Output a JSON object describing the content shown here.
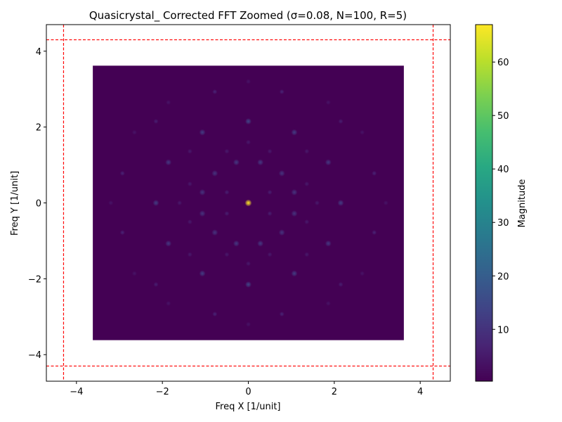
{
  "chart_data": {
    "type": "heatmap",
    "title": "Quasicrystal_ Corrected FFT Zoomed (σ=0.08, N=100, R=5)",
    "xlabel": "Freq X [1/unit]",
    "ylabel": "Freq Y [1/unit]",
    "xlim": [
      -4.7,
      4.7
    ],
    "ylim": [
      -4.7,
      4.7
    ],
    "xticks": [
      -4,
      -2,
      0,
      2,
      4
    ],
    "yticks": [
      -4,
      -2,
      0,
      2,
      4
    ],
    "xtick_labels": [
      "−4",
      "−2",
      "0",
      "2",
      "4"
    ],
    "ytick_labels": [
      "−4",
      "−2",
      "0",
      "2",
      "4"
    ],
    "image_extent": {
      "x": [
        -3.62,
        3.62
      ],
      "y": [
        -3.62,
        3.62
      ]
    },
    "background_value": 0.3,
    "peaks": [
      {
        "x": 0,
        "y": 0,
        "magnitude": 67
      },
      {
        "x": 0,
        "y": 2.15,
        "magnitude": 14
      },
      {
        "x": 0,
        "y": -2.15,
        "magnitude": 14
      },
      {
        "x": 1.07,
        "y": 1.86,
        "magnitude": 12
      },
      {
        "x": -1.07,
        "y": 1.86,
        "magnitude": 12
      },
      {
        "x": 1.07,
        "y": -1.86,
        "magnitude": 12
      },
      {
        "x": -1.07,
        "y": -1.86,
        "magnitude": 12
      },
      {
        "x": 2.15,
        "y": 0,
        "magnitude": 12
      },
      {
        "x": -2.15,
        "y": 0,
        "magnitude": 12
      },
      {
        "x": 1.86,
        "y": 1.07,
        "magnitude": 11
      },
      {
        "x": -1.86,
        "y": 1.07,
        "magnitude": 11
      },
      {
        "x": 1.86,
        "y": -1.07,
        "magnitude": 11
      },
      {
        "x": -1.86,
        "y": -1.07,
        "magnitude": 11
      },
      {
        "x": 0.28,
        "y": 1.07,
        "magnitude": 11
      },
      {
        "x": -0.28,
        "y": 1.07,
        "magnitude": 11
      },
      {
        "x": 0.28,
        "y": -1.07,
        "magnitude": 11
      },
      {
        "x": -0.28,
        "y": -1.07,
        "magnitude": 11
      },
      {
        "x": 1.07,
        "y": 0.28,
        "magnitude": 10
      },
      {
        "x": 1.07,
        "y": -0.28,
        "magnitude": 10
      },
      {
        "x": -1.07,
        "y": 0.28,
        "magnitude": 10
      },
      {
        "x": -1.07,
        "y": -0.28,
        "magnitude": 10
      },
      {
        "x": 0.78,
        "y": 0.78,
        "magnitude": 10
      },
      {
        "x": -0.78,
        "y": 0.78,
        "magnitude": 10
      },
      {
        "x": 0.78,
        "y": -0.78,
        "magnitude": 10
      },
      {
        "x": -0.78,
        "y": -0.78,
        "magnitude": 10
      },
      {
        "x": 0.78,
        "y": 2.93,
        "magnitude": 7
      },
      {
        "x": -0.78,
        "y": 2.93,
        "magnitude": 7
      },
      {
        "x": 0.78,
        "y": -2.93,
        "magnitude": 7
      },
      {
        "x": -0.78,
        "y": -2.93,
        "magnitude": 7
      },
      {
        "x": 2.93,
        "y": 0.78,
        "magnitude": 7
      },
      {
        "x": -2.93,
        "y": 0.78,
        "magnitude": 7
      },
      {
        "x": 2.93,
        "y": -0.78,
        "magnitude": 7
      },
      {
        "x": -2.93,
        "y": -0.78,
        "magnitude": 7
      },
      {
        "x": 2.15,
        "y": 2.15,
        "magnitude": 6
      },
      {
        "x": -2.15,
        "y": 2.15,
        "magnitude": 6
      },
      {
        "x": 2.15,
        "y": -2.15,
        "magnitude": 6
      },
      {
        "x": -2.15,
        "y": -2.15,
        "magnitude": 6
      },
      {
        "x": 0.5,
        "y": 0.28,
        "magnitude": 6
      },
      {
        "x": -0.5,
        "y": 0.28,
        "magnitude": 6
      },
      {
        "x": 0.5,
        "y": -0.28,
        "magnitude": 6
      },
      {
        "x": -0.5,
        "y": -0.28,
        "magnitude": 6
      },
      {
        "x": 0,
        "y": 1.6,
        "magnitude": 5
      },
      {
        "x": 0,
        "y": -1.6,
        "magnitude": 5
      },
      {
        "x": 1.6,
        "y": 0,
        "magnitude": 5
      },
      {
        "x": -1.6,
        "y": 0,
        "magnitude": 5
      },
      {
        "x": 1.36,
        "y": 1.36,
        "magnitude": 5
      },
      {
        "x": -1.36,
        "y": 1.36,
        "magnitude": 5
      },
      {
        "x": 1.36,
        "y": -1.36,
        "magnitude": 5
      },
      {
        "x": -1.36,
        "y": -1.36,
        "magnitude": 5
      },
      {
        "x": 0.5,
        "y": 1.36,
        "magnitude": 5
      },
      {
        "x": -0.5,
        "y": 1.36,
        "magnitude": 5
      },
      {
        "x": 0.5,
        "y": -1.36,
        "magnitude": 5
      },
      {
        "x": -0.5,
        "y": -1.36,
        "magnitude": 5
      },
      {
        "x": 1.36,
        "y": 0.5,
        "magnitude": 5
      },
      {
        "x": -1.36,
        "y": 0.5,
        "magnitude": 5
      },
      {
        "x": 1.36,
        "y": -0.5,
        "magnitude": 5
      },
      {
        "x": -1.36,
        "y": -0.5,
        "magnitude": 5
      },
      {
        "x": 0,
        "y": 3.2,
        "magnitude": 4
      },
      {
        "x": 0,
        "y": -3.2,
        "magnitude": 4
      },
      {
        "x": 3.2,
        "y": 0,
        "magnitude": 4
      },
      {
        "x": -3.2,
        "y": 0,
        "magnitude": 4
      },
      {
        "x": 1.86,
        "y": 2.65,
        "magnitude": 4
      },
      {
        "x": -1.86,
        "y": 2.65,
        "magnitude": 4
      },
      {
        "x": 1.86,
        "y": -2.65,
        "magnitude": 4
      },
      {
        "x": -1.86,
        "y": -2.65,
        "magnitude": 4
      },
      {
        "x": 2.65,
        "y": 1.86,
        "magnitude": 4
      },
      {
        "x": -2.65,
        "y": 1.86,
        "magnitude": 4
      },
      {
        "x": 2.65,
        "y": -1.86,
        "magnitude": 4
      },
      {
        "x": -2.65,
        "y": -1.86,
        "magnitude": 4
      }
    ],
    "reference_lines": [
      {
        "orientation": "vertical",
        "value": -4.3,
        "color": "#ff0000",
        "style": "dashed"
      },
      {
        "orientation": "vertical",
        "value": 4.3,
        "color": "#ff0000",
        "style": "dashed"
      },
      {
        "orientation": "horizontal",
        "value": -4.3,
        "color": "#ff0000",
        "style": "dashed"
      },
      {
        "orientation": "horizontal",
        "value": 4.3,
        "color": "#ff0000",
        "style": "dashed"
      }
    ],
    "colorbar": {
      "label": "Magnitude",
      "colormap": "viridis",
      "range": [
        0.3,
        67
      ],
      "ticks": [
        10,
        20,
        30,
        40,
        50,
        60
      ],
      "tick_labels": [
        "10",
        "20",
        "30",
        "40",
        "50",
        "60"
      ]
    },
    "grid": false
  }
}
